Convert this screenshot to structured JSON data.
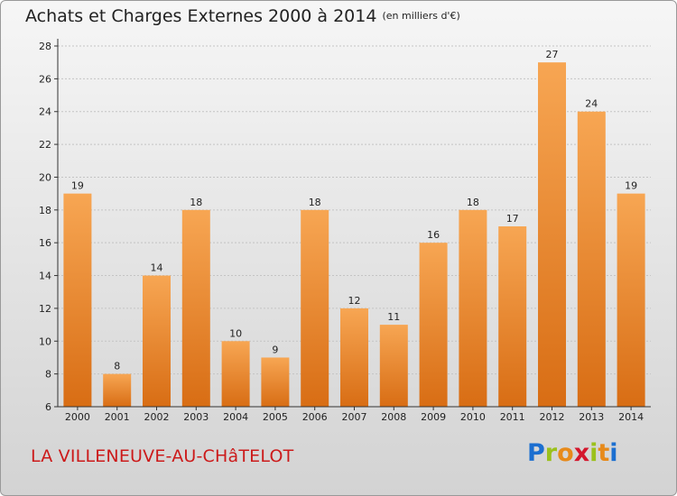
{
  "title": "Achats et Charges Externes 2000 à 2014",
  "subtitle": "(en milliers d'€)",
  "place": "LA VILLENEUVE-AU-CHâTELOT",
  "logo": {
    "letters": [
      "P",
      "r",
      "o",
      "x",
      "i",
      "t",
      "i"
    ],
    "colors": [
      "#1c6fd0",
      "#9bc11b",
      "#e78a1a",
      "#d4172d",
      "#9bc11b",
      "#e78a1a",
      "#1c6fd0"
    ]
  },
  "chart_data": {
    "type": "bar",
    "title": "Achats et Charges Externes 2000 à 2014",
    "subtitle": "(en milliers d'€)",
    "categories": [
      "2000",
      "2001",
      "2002",
      "2003",
      "2004",
      "2005",
      "2006",
      "2007",
      "2008",
      "2009",
      "2010",
      "2011",
      "2012",
      "2013",
      "2014"
    ],
    "values": [
      19,
      8,
      14,
      18,
      10,
      9,
      18,
      12,
      11,
      16,
      18,
      17,
      27,
      24,
      19
    ],
    "ylim": [
      6,
      28
    ],
    "yticks": [
      6,
      8,
      10,
      12,
      14,
      16,
      18,
      20,
      22,
      24,
      26,
      28
    ],
    "grid": true,
    "bar_color": "#f28a26"
  }
}
